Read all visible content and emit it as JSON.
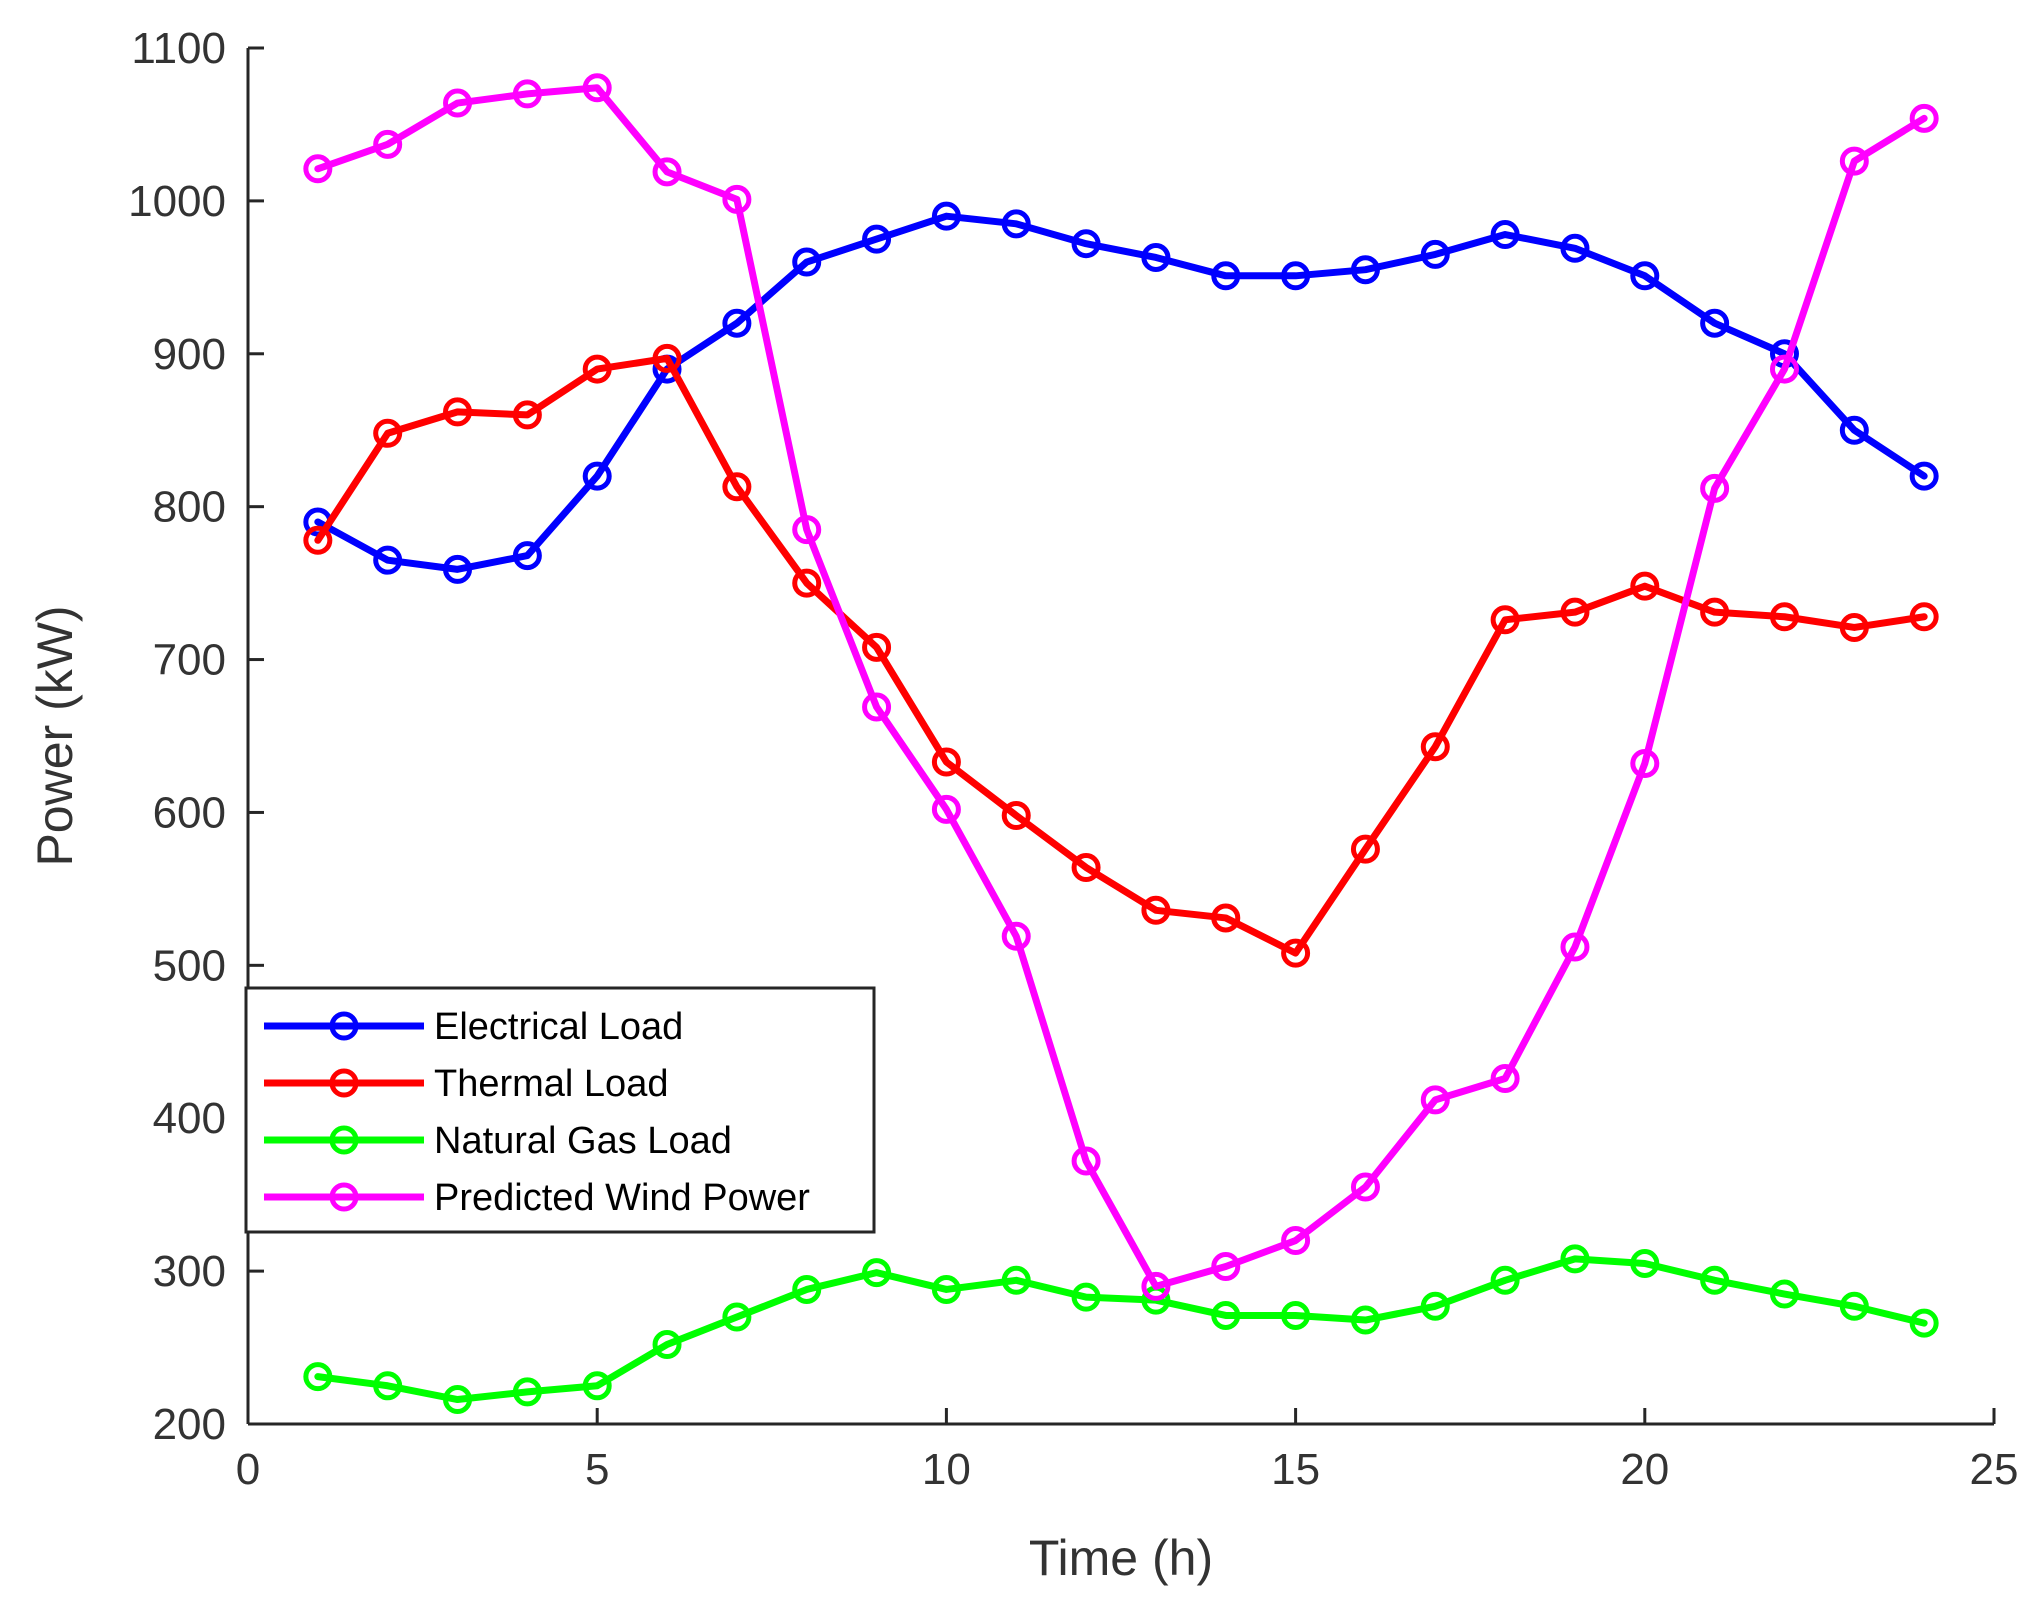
{
  "chart_data": {
    "type": "line",
    "title": "",
    "xlabel": "Time (h)",
    "ylabel": "Power (kW)",
    "xlim": [
      0,
      25
    ],
    "ylim": [
      200,
      1100
    ],
    "xticks": [
      0,
      5,
      10,
      15,
      20,
      25
    ],
    "yticks": [
      200,
      300,
      400,
      500,
      600,
      700,
      800,
      900,
      1000,
      1100
    ],
    "grid": false,
    "legend_position": "lower-left",
    "x": [
      1,
      2,
      3,
      4,
      5,
      6,
      7,
      8,
      9,
      10,
      11,
      12,
      13,
      14,
      15,
      16,
      17,
      18,
      19,
      20,
      21,
      22,
      23,
      24
    ],
    "series": [
      {
        "name": "Electrical Load",
        "color": "#0000ff",
        "values": [
          790,
          765,
          759,
          768,
          820,
          890,
          920,
          960,
          975,
          990,
          985,
          972,
          963,
          951,
          951,
          955,
          965,
          978,
          969,
          951,
          920,
          900,
          850,
          820
        ]
      },
      {
        "name": "Thermal Load",
        "color": "#ff0000",
        "values": [
          778,
          848,
          862,
          860,
          890,
          897,
          813,
          750,
          708,
          633,
          598,
          564,
          536,
          531,
          508,
          576,
          643,
          726,
          731,
          748,
          731,
          728,
          721,
          728
        ]
      },
      {
        "name": "Natural Gas Load",
        "color": "#00ff00",
        "values": [
          231,
          225,
          216,
          221,
          225,
          252,
          270,
          288,
          299,
          288,
          294,
          283,
          281,
          271,
          271,
          268,
          277,
          294,
          308,
          305,
          294,
          285,
          277,
          266
        ]
      },
      {
        "name": "Predicted Wind Power",
        "color": "#ff00ff",
        "values": [
          1021,
          1037,
          1064,
          1070,
          1074,
          1019,
          1001,
          785,
          669,
          602,
          519,
          372,
          290,
          303,
          320,
          355,
          412,
          426,
          512,
          632,
          812,
          890,
          1026,
          1054
        ]
      }
    ]
  }
}
